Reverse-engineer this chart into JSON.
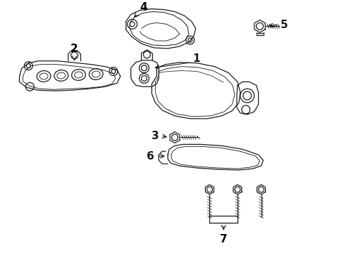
{
  "background_color": "#ffffff",
  "line_color": "#1a1a1a",
  "fig_width": 4.89,
  "fig_height": 3.6,
  "dpi": 100,
  "font_size": 11,
  "lw": 0.9
}
